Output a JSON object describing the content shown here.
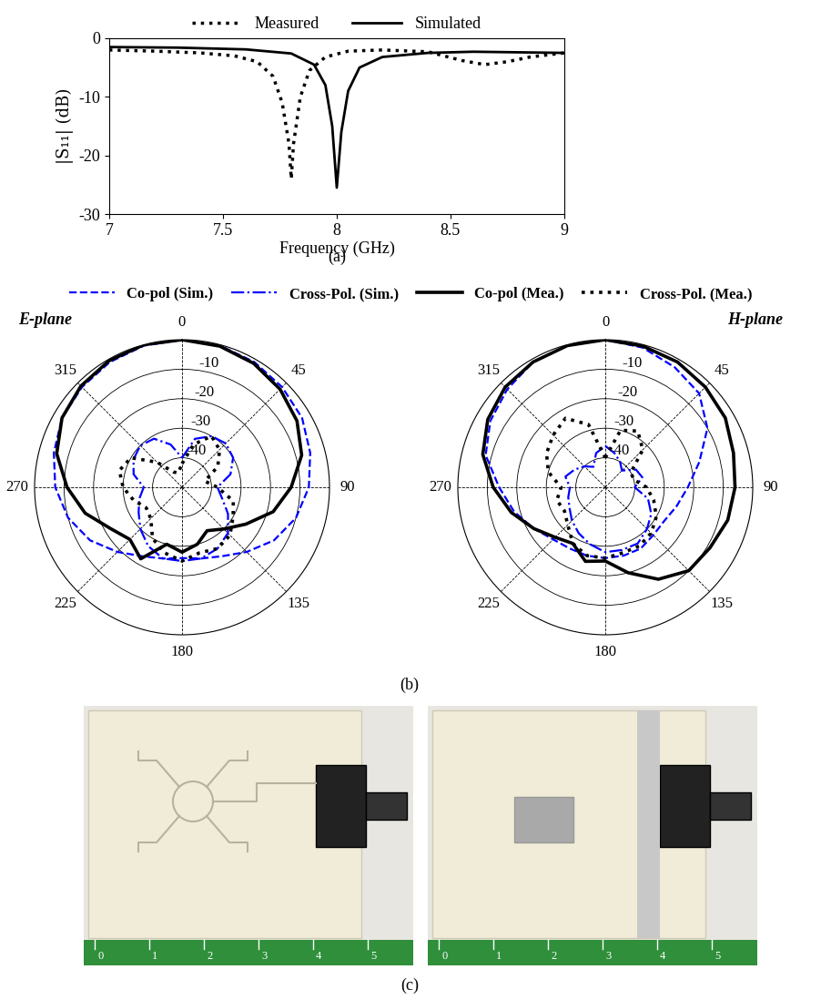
{
  "chart_data": [
    {
      "type": "line",
      "panel": "(a)",
      "xlabel": "Frequency (GHz)",
      "ylabel": "|S₁₁| (dB)",
      "xlim": [
        7,
        9
      ],
      "xticks": [
        7,
        7.5,
        8,
        8.5,
        9
      ],
      "ylim": [
        -30,
        0
      ],
      "yticks": [
        -30,
        -20,
        -10,
        0
      ],
      "legend": "lower center",
      "series": [
        {
          "name": "Measured",
          "color": "#000000",
          "line_style": "dotted",
          "x": [
            7,
            7.2,
            7.4,
            7.55,
            7.65,
            7.72,
            7.76,
            7.79,
            7.8,
            7.81,
            7.84,
            7.88,
            7.95,
            8.05,
            8.2,
            8.4,
            8.55,
            8.65,
            8.75,
            8.85,
            9
          ],
          "values": [
            -2.0,
            -2.2,
            -2.5,
            -3.0,
            -4.0,
            -6.5,
            -11,
            -18,
            -24,
            -18,
            -10,
            -5.5,
            -3.2,
            -2.2,
            -2.0,
            -2.3,
            -3.8,
            -4.5,
            -4.0,
            -3.2,
            -2.5
          ]
        },
        {
          "name": "Simulated",
          "color": "#000000",
          "line_style": "solid",
          "x": [
            7,
            7.3,
            7.6,
            7.8,
            7.9,
            7.95,
            7.98,
            8.0,
            8.02,
            8.05,
            8.1,
            8.2,
            8.4,
            8.6,
            8.8,
            9
          ],
          "values": [
            -1.5,
            -1.6,
            -1.9,
            -2.6,
            -4.5,
            -8,
            -15,
            -25.5,
            -16,
            -9,
            -5,
            -3.2,
            -2.5,
            -2.3,
            -2.4,
            -2.5
          ]
        }
      ]
    },
    {
      "type": "polar",
      "title": "E-plane",
      "legend": "upper center",
      "rlim": [
        -50,
        0
      ],
      "rticks": [
        -40,
        -30,
        -20,
        -10
      ],
      "thetaticks": [
        0,
        45,
        90,
        135,
        180,
        225,
        270,
        315
      ],
      "theta": [
        0,
        15,
        30,
        45,
        60,
        75,
        90,
        105,
        120,
        135,
        150,
        165,
        180,
        195,
        210,
        225,
        240,
        255,
        270,
        285,
        300,
        315,
        330,
        345
      ],
      "series": [
        {
          "name": "Co-pol (Sim.)",
          "color": "#0000ff",
          "line_style": "dashed",
          "values": [
            0,
            -0.3,
            -1,
            -2,
            -3,
            -5,
            -7,
            -10,
            -14,
            -19,
            -23,
            -25,
            -26,
            -25,
            -23,
            -19,
            -14,
            -10,
            -7,
            -5,
            -3,
            -2,
            -1,
            -0.3
          ]
        },
        {
          "name": "Cross-Pol. (Sim.)",
          "color": "#0000ff",
          "line_style": "dashdot",
          "values": [
            -40,
            -33,
            -30,
            -29,
            -30,
            -33,
            -38,
            -36,
            -32,
            -28,
            -26,
            -25,
            -25,
            -25,
            -27,
            -30,
            -33,
            -35,
            -37,
            -33,
            -31,
            -30,
            -31,
            -35
          ]
        },
        {
          "name": "Co-pol (Mea.)",
          "color": "#000000",
          "line_style": "solid",
          "values": [
            0,
            -0.5,
            -1.5,
            -3,
            -5,
            -8,
            -13,
            -18,
            -25,
            -30,
            -33,
            -30,
            -28,
            -30,
            -22,
            -25,
            -22,
            -16,
            -11,
            -6,
            -3,
            -1.5,
            -0.5,
            0
          ]
        },
        {
          "name": "Cross-Pol. (Mea.)",
          "color": "#000000",
          "line_style": "dotted",
          "values": [
            -42,
            -35,
            -30,
            -32,
            -36,
            -42,
            -38,
            -32,
            -30,
            -27,
            -26,
            -27,
            -25,
            -27,
            -30,
            -35,
            -36,
            -33,
            -30,
            -28,
            -30,
            -38,
            -44,
            -45
          ]
        }
      ]
    },
    {
      "type": "polar",
      "title": "H-plane",
      "rlim": [
        -50,
        0
      ],
      "rticks": [
        -40,
        -30,
        -20,
        -10
      ],
      "thetaticks": [
        0,
        45,
        90,
        135,
        180,
        225,
        270,
        315
      ],
      "theta": [
        0,
        15,
        30,
        45,
        60,
        75,
        90,
        105,
        120,
        135,
        150,
        165,
        180,
        195,
        210,
        225,
        240,
        255,
        270,
        285,
        300,
        315,
        330,
        345
      ],
      "series": [
        {
          "name": "Co-pol (Sim.)",
          "color": "#0000ff",
          "line_style": "dashed",
          "values": [
            0,
            -1,
            -3,
            -5,
            -10,
            -17,
            -22,
            -25,
            -27,
            -27,
            -26,
            -26,
            -26,
            -26,
            -26,
            -25,
            -22,
            -18,
            -14,
            -8,
            -5,
            -3,
            -1,
            -0.3
          ]
        },
        {
          "name": "Cross-Pol. (Sim.)",
          "color": "#0000ff",
          "line_style": "dashdot",
          "values": [
            -36,
            -38,
            -40,
            -42,
            -38,
            -37,
            -40,
            -35,
            -32,
            -30,
            -28,
            -28,
            -28,
            -30,
            -32,
            -34,
            -36,
            -37,
            -38,
            -36,
            -38,
            -40,
            -42,
            -38
          ]
        },
        {
          "name": "Co-pol (Mea.)",
          "color": "#000000",
          "line_style": "solid",
          "values": [
            0,
            -0.5,
            -1,
            -2,
            -3,
            -5,
            -6,
            -7,
            -9,
            -10,
            -14,
            -20,
            -25,
            -24,
            -28,
            -26,
            -22,
            -17,
            -12,
            -7,
            -4,
            -2,
            -1,
            -0.3
          ]
        },
        {
          "name": "Cross-Pol. (Mea.)",
          "color": "#000000",
          "line_style": "dotted",
          "values": [
            -40,
            -30,
            -28,
            -32,
            -40,
            -40,
            -36,
            -33,
            -30,
            -28,
            -27,
            -27,
            -26,
            -26,
            -28,
            -32,
            -34,
            -33,
            -35,
            -30,
            -27,
            -25,
            -23,
            -28
          ]
        }
      ]
    }
  ],
  "panel_labels": [
    "(b)",
    "(c)"
  ],
  "photos": {
    "ruler_ticks": [
      0,
      1,
      2,
      3,
      4,
      5
    ]
  }
}
